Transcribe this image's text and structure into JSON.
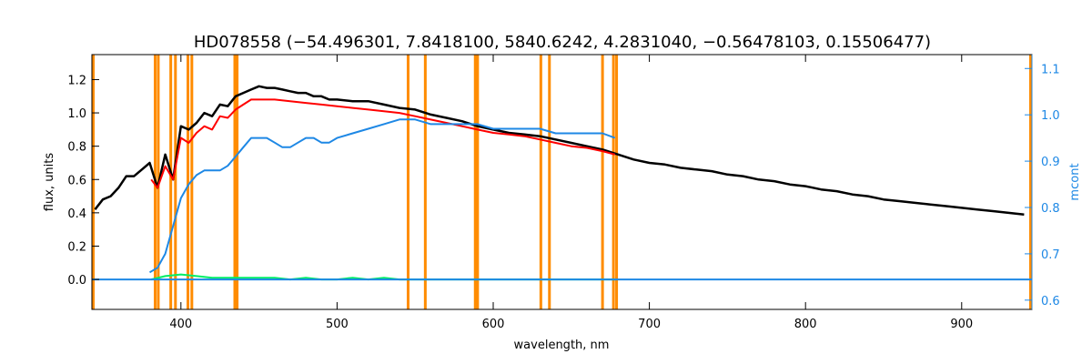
{
  "chart_data": {
    "type": "line",
    "title": "HD078558   (−54.496301, 7.8418100, 5840.6242, 4.2831040, −0.56478103, 0.15506477)",
    "xlabel": "wavelength, nm",
    "ylabel": "flux, units",
    "ylabel_right": "mcont",
    "xlim": [
      343,
      945
    ],
    "ylim": [
      -0.18,
      1.35
    ],
    "ylim_right": [
      0.58,
      1.13
    ],
    "x_ticks": [
      400,
      500,
      600,
      700,
      800,
      900
    ],
    "y_ticks": [
      0.0,
      0.2,
      0.4,
      0.6,
      0.8,
      1.0,
      1.2
    ],
    "y_ticks_right": [
      0.6,
      0.7,
      0.8,
      0.9,
      1.0,
      1.1
    ],
    "y_tick_labels": [
      "0.0",
      "0.2",
      "0.4",
      "0.6",
      "0.8",
      "1.0",
      "1.2"
    ],
    "y_tick_labels_right": [
      "0.6",
      "0.7",
      "0.8",
      "0.9",
      "1.0",
      "1.1"
    ],
    "x_tick_labels": [
      "400",
      "500",
      "600",
      "700",
      "800",
      "900"
    ],
    "vertical_lines_nm": [
      383.5,
      385.5,
      393.5,
      396.5,
      404.5,
      407.0,
      434.5,
      436.0,
      545.5,
      556.5,
      588.5,
      590.0,
      630.5,
      636.0,
      670.0,
      677.0,
      679.0
    ],
    "colors": {
      "observed": "#000000",
      "model": "#ff0000",
      "residual": "#00ee66",
      "continuum": "#1e88e5",
      "vlines": "#ff8c00",
      "axis_right": "#1e88e5"
    },
    "series": [
      {
        "role": "observed",
        "color": "#000000",
        "x": [
          345,
          350,
          355,
          360,
          365,
          370,
          375,
          380,
          385,
          390,
          395,
          400,
          405,
          410,
          415,
          420,
          425,
          430,
          435,
          440,
          445,
          450,
          455,
          460,
          465,
          470,
          475,
          480,
          485,
          490,
          495,
          500,
          510,
          520,
          530,
          540,
          550,
          560,
          570,
          580,
          590,
          600,
          610,
          620,
          630,
          640,
          650,
          660,
          670,
          680,
          690,
          700,
          710,
          720,
          730,
          740,
          750,
          760,
          770,
          780,
          790,
          800,
          810,
          820,
          830,
          840,
          850,
          860,
          870,
          880,
          890,
          900,
          910,
          920,
          930,
          940
        ],
        "y": [
          0.42,
          0.48,
          0.5,
          0.55,
          0.62,
          0.62,
          0.66,
          0.7,
          0.55,
          0.75,
          0.6,
          0.92,
          0.9,
          0.94,
          1.0,
          0.98,
          1.05,
          1.04,
          1.1,
          1.12,
          1.14,
          1.16,
          1.15,
          1.15,
          1.14,
          1.13,
          1.12,
          1.12,
          1.1,
          1.1,
          1.08,
          1.08,
          1.07,
          1.07,
          1.05,
          1.03,
          1.02,
          0.99,
          0.97,
          0.95,
          0.92,
          0.9,
          0.88,
          0.87,
          0.86,
          0.84,
          0.82,
          0.8,
          0.78,
          0.75,
          0.72,
          0.7,
          0.69,
          0.67,
          0.66,
          0.65,
          0.63,
          0.62,
          0.6,
          0.59,
          0.57,
          0.56,
          0.54,
          0.53,
          0.51,
          0.5,
          0.48,
          0.47,
          0.46,
          0.45,
          0.44,
          0.43,
          0.42,
          0.41,
          0.4,
          0.39
        ]
      },
      {
        "role": "model",
        "color": "#ff0000",
        "x": [
          381,
          385,
          390,
          395,
          400,
          405,
          410,
          415,
          420,
          425,
          430,
          435,
          440,
          445,
          450,
          460,
          470,
          480,
          490,
          500,
          510,
          520,
          530,
          540,
          550,
          560,
          570,
          580,
          590,
          600,
          610,
          620,
          630,
          640,
          650,
          660,
          670,
          678
        ],
        "y": [
          0.6,
          0.55,
          0.68,
          0.6,
          0.85,
          0.82,
          0.88,
          0.92,
          0.9,
          0.98,
          0.97,
          1.02,
          1.05,
          1.08,
          1.08,
          1.08,
          1.07,
          1.06,
          1.05,
          1.04,
          1.03,
          1.02,
          1.01,
          1.0,
          0.98,
          0.96,
          0.94,
          0.92,
          0.9,
          0.88,
          0.87,
          0.86,
          0.84,
          0.82,
          0.8,
          0.79,
          0.77,
          0.75
        ]
      },
      {
        "role": "continuum",
        "color": "#1e88e5",
        "axis": "right",
        "x": [
          380,
          385,
          390,
          395,
          400,
          405,
          410,
          415,
          420,
          425,
          430,
          435,
          440,
          445,
          450,
          455,
          460,
          465,
          470,
          475,
          480,
          485,
          490,
          495,
          500,
          510,
          520,
          530,
          540,
          550,
          560,
          570,
          580,
          590,
          600,
          610,
          620,
          630,
          640,
          650,
          660,
          670,
          678
        ],
        "y": [
          0.66,
          0.67,
          0.7,
          0.76,
          0.82,
          0.85,
          0.87,
          0.88,
          0.88,
          0.88,
          0.89,
          0.91,
          0.93,
          0.95,
          0.95,
          0.95,
          0.94,
          0.93,
          0.93,
          0.94,
          0.95,
          0.95,
          0.94,
          0.94,
          0.95,
          0.96,
          0.97,
          0.98,
          0.99,
          0.99,
          0.98,
          0.98,
          0.98,
          0.98,
          0.97,
          0.97,
          0.97,
          0.97,
          0.96,
          0.96,
          0.96,
          0.96,
          0.95
        ]
      },
      {
        "role": "residual",
        "color": "#00ee66",
        "x": [
          381,
          390,
          400,
          410,
          420,
          430,
          440,
          450,
          460,
          470,
          480,
          490,
          500,
          510,
          520,
          530,
          540,
          550,
          560,
          570,
          580,
          590,
          600,
          610,
          620,
          630,
          640,
          650,
          660,
          670,
          678
        ],
        "y": [
          0.0,
          0.02,
          0.03,
          0.02,
          0.01,
          0.01,
          0.01,
          0.01,
          0.01,
          0.0,
          0.01,
          0.0,
          0.0,
          0.01,
          0.0,
          0.01,
          0.0,
          0.0,
          0.0,
          0.0,
          0.0,
          0.0,
          0.0,
          0.0,
          0.0,
          0.0,
          0.0,
          0.0,
          0.0,
          0.0,
          0.0
        ]
      },
      {
        "role": "residual-baseline",
        "color": "#1e88e5",
        "x": [
          343,
          380,
          678,
          945
        ],
        "y": [
          0.0,
          0.0,
          0.0,
          0.0
        ]
      }
    ]
  }
}
